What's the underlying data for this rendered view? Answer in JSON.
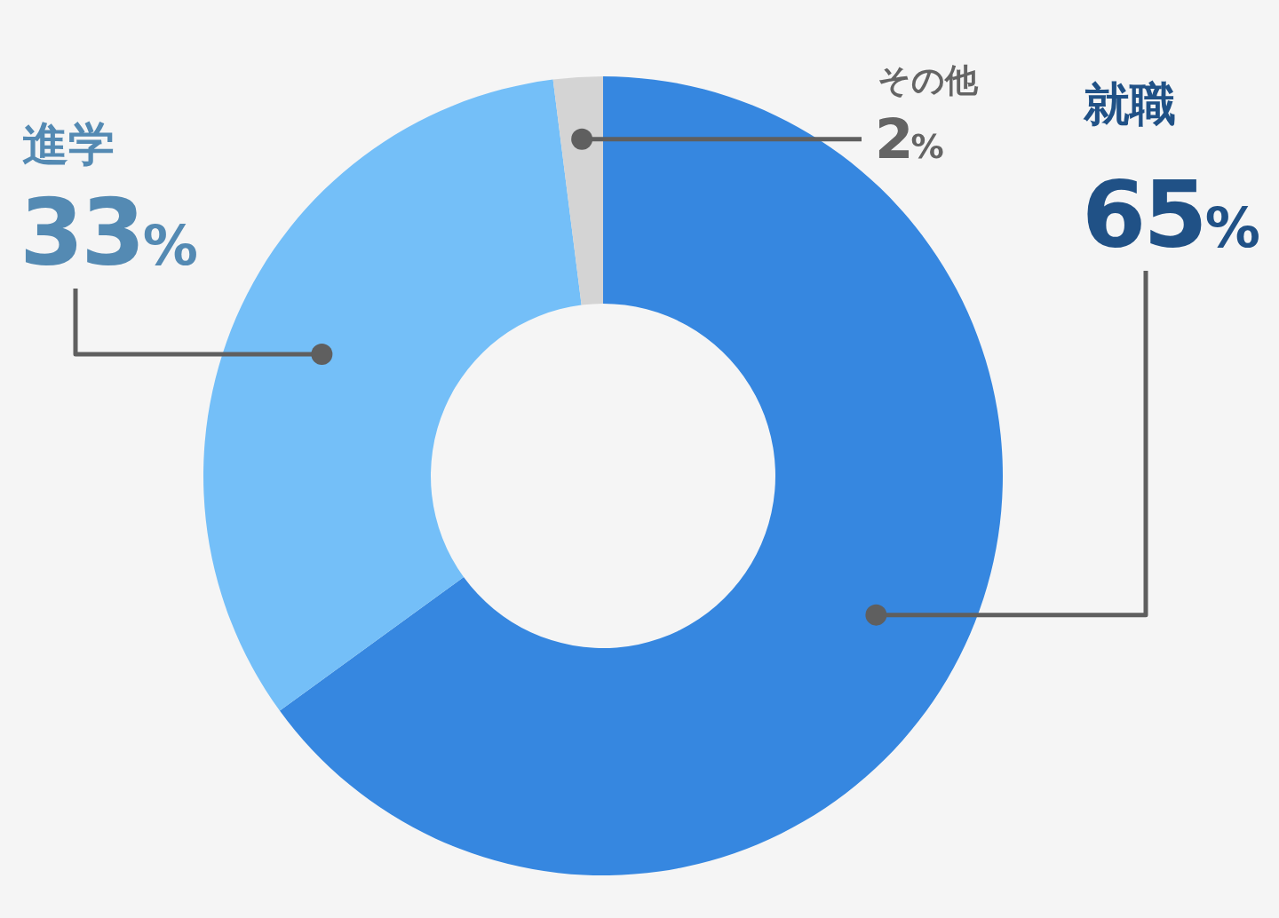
{
  "chart_data": {
    "type": "donut",
    "categories": [
      "就職",
      "進学",
      "その他"
    ],
    "values": [
      65,
      33,
      2
    ],
    "value_labels": [
      "65%",
      "33%",
      "2%"
    ],
    "colors": [
      "#3687e0",
      "#74bff8",
      "#d4d4d4"
    ]
  }
}
